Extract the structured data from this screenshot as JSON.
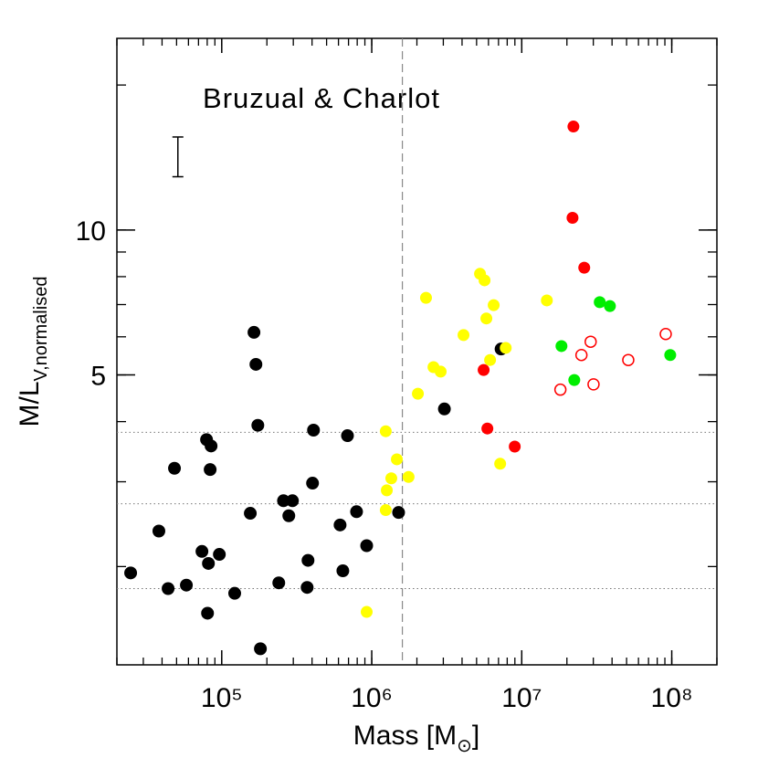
{
  "chart_data": {
    "type": "scatter",
    "annotation": "Bruzual & Charlot",
    "xlabel": {
      "text": "Mass [M",
      "sub": "⊙",
      "end": "]"
    },
    "ylabel": {
      "text": "M/L",
      "sub": "V,normalised"
    },
    "xscale": "log",
    "yscale": "log",
    "xlim": [
      20000,
      200000000
    ],
    "ylim": [
      1.25,
      25
    ],
    "xticks": [
      {
        "value": 100000,
        "label": "10⁵"
      },
      {
        "value": 1000000,
        "label": "10⁶"
      },
      {
        "value": 10000000,
        "label": "10⁷"
      },
      {
        "value": 100000000,
        "label": "10⁸"
      }
    ],
    "yticks": [
      5,
      10
    ],
    "hlines": [
      3.8,
      2.7,
      1.8
    ],
    "vline": 1600000,
    "error_bar": {
      "x": 51000,
      "y": 14.2,
      "low": 12.9,
      "high": 15.6
    },
    "series": [
      {
        "color": "#000000",
        "marker": "filled",
        "x": [
          24700,
          38100,
          43900,
          58100,
          48400,
          73800,
          79200,
          84900,
          83700,
          81500,
          80400,
          96400,
          122000,
          155000,
          164000,
          169000,
          174000,
          181000,
          240000,
          258000,
          280000,
          296000,
          376000,
          371000,
          403000,
          409000,
          615000,
          642000,
          689000,
          792000,
          925000,
          1510000,
          3050000,
          7280000
        ],
        "values": [
          1.94,
          2.37,
          1.8,
          1.83,
          3.2,
          2.15,
          3.67,
          3.56,
          3.18,
          2.03,
          1.6,
          2.12,
          1.76,
          2.58,
          6.13,
          5.26,
          3.93,
          1.35,
          1.85,
          2.74,
          2.55,
          2.74,
          2.06,
          1.81,
          2.98,
          3.84,
          2.44,
          1.96,
          3.74,
          2.6,
          2.21,
          2.59,
          4.25,
          5.66
        ]
      },
      {
        "color": "#ffff00",
        "marker": "filled",
        "x": [
          1240000,
          1240000,
          1260000,
          1350000,
          1470000,
          1760000,
          925000,
          2030000,
          2300000,
          2580000,
          2880000,
          4090000,
          5270000,
          5650000,
          5810000,
          6500000,
          6150000,
          7180000,
          7820000,
          14700000
        ],
        "values": [
          3.82,
          2.62,
          2.88,
          3.05,
          3.34,
          3.07,
          1.61,
          4.57,
          7.23,
          5.19,
          5.08,
          6.05,
          8.11,
          7.86,
          6.55,
          6.98,
          5.37,
          3.27,
          5.69,
          7.14
        ]
      },
      {
        "color": "#ff0000",
        "marker": "filled",
        "x": [
          22100000,
          21800000,
          26100000,
          5570000,
          5900000,
          8980000
        ],
        "values": [
          16.4,
          10.6,
          8.35,
          5.12,
          3.87,
          3.55
        ]
      },
      {
        "color": "#00ee00",
        "marker": "filled",
        "x": [
          18400000,
          33100000,
          38700000,
          22400000,
          97700000
        ],
        "values": [
          5.74,
          7.08,
          6.95,
          4.88,
          5.5
        ]
      },
      {
        "color": "#ff0000",
        "marker": "open",
        "x": [
          18100000,
          25000000,
          28800000,
          30100000,
          51300000,
          91200000
        ],
        "values": [
          4.66,
          5.5,
          5.86,
          4.78,
          5.37,
          6.08
        ]
      }
    ]
  }
}
